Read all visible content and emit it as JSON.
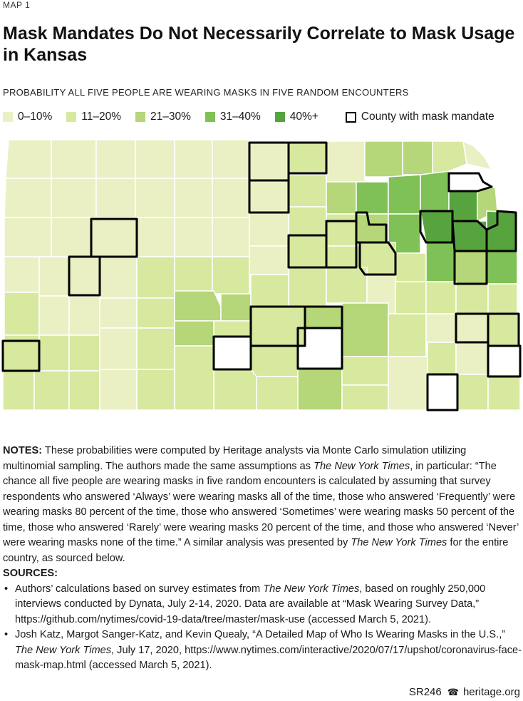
{
  "header": {
    "kicker": "MAP 1",
    "title": "Mask Mandates Do Not Necessarily Correlate to Mask Usage in Kansas",
    "subtitle": "PROBABILITY ALL FIVE PEOPLE ARE WEARING MASKS IN FIVE RANDOM ENCOUNTERS"
  },
  "legend": {
    "items": [
      {
        "label": "0–10%",
        "color": "#eaf0c4"
      },
      {
        "label": "11–20%",
        "color": "#d7e89f"
      },
      {
        "label": "21–30%",
        "color": "#b5d679"
      },
      {
        "label": "31–40%",
        "color": "#80c157"
      },
      {
        "label": "40%+",
        "color": "#57a43f"
      }
    ],
    "mandate_label": "County with mask mandate"
  },
  "map": {
    "region": "Kansas",
    "border_color": "#ffffff",
    "mandate_stroke": "#000000"
  },
  "notes": {
    "label": "NOTES:",
    "text_before_nyt": " These probabilities were computed by Heritage analysts via Monte Carlo simulation utilizing multinomial sampling. The authors made the same assumptions as ",
    "nyt": "The New York Times",
    "text_after_nyt": ", in particular: “The chance all five people are wearing masks in five random encounters is calculated by assuming that survey respondents who answered ‘Always’ were wearing masks all of the time, those who answered ‘Frequently’ were wearing masks 80 percent of the time, those who answered ‘Sometimes’ were wearing masks 50 percent of the time, those who answered ‘Rarely’ were wearing masks 20 percent of the time, and those who answered ‘Never’ were wearing masks none of the time.” A similar analysis was presented by ",
    "nyt2": "The New York Times",
    "text_end": " for the entire country, as sourced below."
  },
  "sources": {
    "label": "SOURCES:",
    "s1_a": "Authors’ calculations based on survey estimates from ",
    "s1_nyt": "The New York Times",
    "s1_b": ", based on roughly 250,000 interviews conducted by Dynata, July 2-14, 2020. Data are available at “Mask Wearing Survey Data,” https://github.com/nytimes/covid-19-data/tree/master/mask-use (accessed March 5, 2021).",
    "s2_a": "Josh Katz, Margot Sanger-Katz, and Kevin Quealy, “A Detailed Map of Who Is Wearing Masks in the U.S.,” ",
    "s2_nyt": "The New York Times",
    "s2_b": ", July 17, 2020, https://www.nytimes.com/interactive/2020/07/17/upshot/coronavirus-face-mask-map.html (accessed March 5, 2021)."
  },
  "footer": {
    "report_id": "SR246",
    "bell_icon": "☎",
    "site": "heritage.org"
  }
}
